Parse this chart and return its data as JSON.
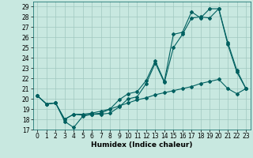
{
  "xlabel": "Humidex (Indice chaleur)",
  "xlim": [
    -0.5,
    23.5
  ],
  "ylim": [
    17,
    29.5
  ],
  "yticks": [
    17,
    18,
    19,
    20,
    21,
    22,
    23,
    24,
    25,
    26,
    27,
    28,
    29
  ],
  "xticks": [
    0,
    1,
    2,
    3,
    4,
    5,
    6,
    7,
    8,
    9,
    10,
    11,
    12,
    13,
    14,
    15,
    16,
    17,
    18,
    19,
    20,
    21,
    22,
    23
  ],
  "bg_color": "#c8e8e0",
  "grid_color": "#a0c8c0",
  "line_color": "#006060",
  "line1_y": [
    20.3,
    19.5,
    19.6,
    18.0,
    18.5,
    18.4,
    18.5,
    18.5,
    18.6,
    19.2,
    20.0,
    20.2,
    21.5,
    23.5,
    21.6,
    25.0,
    26.3,
    27.9,
    28.0,
    27.9,
    28.8,
    25.5,
    22.8,
    21.0
  ],
  "line2_y": [
    20.3,
    19.5,
    19.6,
    17.8,
    17.2,
    18.3,
    18.5,
    18.6,
    19.0,
    19.9,
    20.5,
    20.7,
    21.8,
    23.7,
    21.7,
    26.3,
    26.5,
    28.5,
    27.9,
    28.8,
    28.8,
    25.3,
    22.6,
    21.0
  ],
  "line3_y": [
    20.3,
    19.5,
    19.6,
    18.0,
    18.5,
    18.5,
    18.6,
    18.8,
    19.0,
    19.3,
    19.6,
    19.9,
    20.1,
    20.4,
    20.6,
    20.8,
    21.0,
    21.2,
    21.5,
    21.7,
    21.9,
    21.0,
    20.5,
    21.0
  ]
}
